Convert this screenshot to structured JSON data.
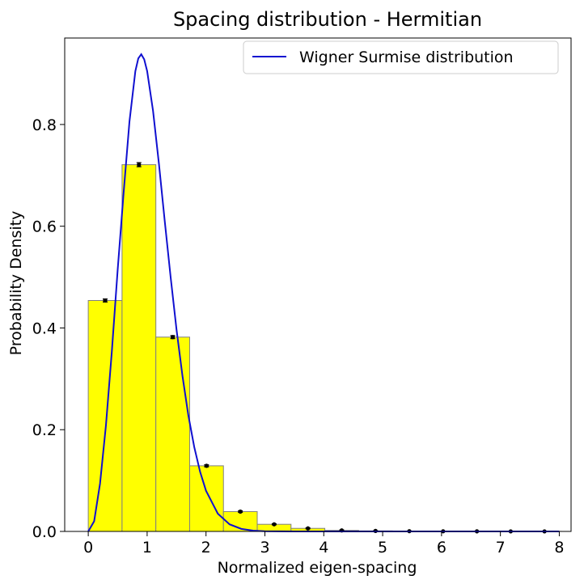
{
  "chart_data": {
    "type": "bar",
    "title": "Spacing distribution - Hermitian",
    "xlabel": "Normalized eigen-spacing",
    "ylabel": "Probability Density",
    "xlim": [
      -0.4,
      8.2
    ],
    "ylim": [
      0,
      0.97
    ],
    "xticks": [
      0,
      1,
      2,
      3,
      4,
      5,
      6,
      7,
      8
    ],
    "yticks": [
      0.0,
      0.2,
      0.4,
      0.6,
      0.8
    ],
    "xtick_labels": [
      "0",
      "1",
      "2",
      "3",
      "4",
      "5",
      "6",
      "7",
      "8"
    ],
    "ytick_labels": [
      "0.0",
      "0.2",
      "0.4",
      "0.6",
      "0.8"
    ],
    "grid": false,
    "legend_position": "top-right",
    "histogram": {
      "bin_edges": [
        0.0,
        0.574,
        1.148,
        1.722,
        2.296,
        2.87,
        3.444,
        4.018,
        4.592,
        5.166,
        5.74,
        6.314,
        6.888,
        7.462,
        8.036
      ],
      "values": [
        0.454,
        0.721,
        0.382,
        0.129,
        0.039,
        0.014,
        0.006,
        0.002,
        0.001,
        0.0005,
        0.0003,
        0.0002,
        0.0001,
        0.0001
      ],
      "errors": [
        0.003,
        0.004,
        0.003,
        0.002,
        0.0015,
        0.001,
        0.001,
        0.0008,
        0.0005,
        0.0004,
        0.0003,
        0.0002,
        0.0002,
        0.0002
      ],
      "fill_color": "#ffff00",
      "edge_color": "#808080"
    },
    "series": [
      {
        "name": "Wigner Surmise distribution",
        "type": "line",
        "color": "#1010d0",
        "x": [
          0.0,
          0.1,
          0.2,
          0.3,
          0.4,
          0.5,
          0.6,
          0.7,
          0.8,
          0.85,
          0.9,
          0.95,
          1.0,
          1.1,
          1.2,
          1.3,
          1.4,
          1.5,
          1.6,
          1.7,
          1.8,
          1.9,
          2.0,
          2.2,
          2.4,
          2.6,
          2.8,
          3.0,
          3.5,
          4.0,
          5.0,
          6.0,
          7.0,
          8.0
        ],
        "y": [
          0.0,
          0.02,
          0.094,
          0.208,
          0.353,
          0.515,
          0.665,
          0.806,
          0.905,
          0.93,
          0.938,
          0.928,
          0.905,
          0.827,
          0.723,
          0.609,
          0.499,
          0.396,
          0.306,
          0.228,
          0.166,
          0.117,
          0.08,
          0.035,
          0.014,
          0.005,
          0.0016,
          0.0005,
          0.0,
          0.0,
          0.0,
          0.0,
          0.0,
          0.0
        ]
      }
    ]
  }
}
